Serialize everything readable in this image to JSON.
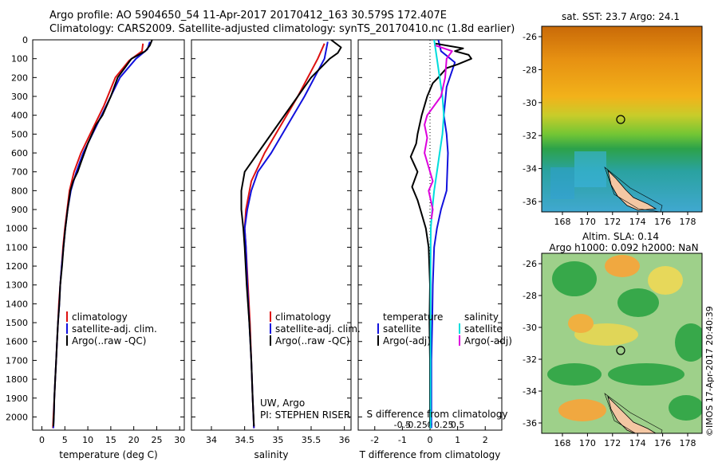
{
  "title": {
    "line1": "Argo profile: AO 5904650_54 11-Apr-2017 20170412_163 30.579S 172.407E",
    "line2": "Climatology: CARS2009. Satellite-adjusted climatology: synTS_20170410.nc (1.8d earlier)"
  },
  "colors": {
    "climatology": "#dd1111",
    "satellite": "#1111dd",
    "argo": "#000000",
    "sat_salinity": "#00dddd",
    "argo_salinity_diff": "#dd00dd"
  },
  "chart_data": [
    {
      "type": "line",
      "name": "temperature",
      "xlabel": "temperature (deg C)",
      "ylabel": "",
      "xlim": [
        -2,
        31
      ],
      "ylim": [
        2070,
        0
      ],
      "xticks": [
        0,
        5,
        10,
        15,
        20,
        25,
        30
      ],
      "yticks": [
        0,
        100,
        200,
        300,
        400,
        500,
        600,
        700,
        800,
        900,
        1000,
        1100,
        1200,
        1300,
        1400,
        1500,
        1600,
        1700,
        1800,
        1900,
        2000
      ],
      "legend": {
        "position": "center-right",
        "entries": [
          "climatology",
          "satellite-adj. clim.",
          "Argo(..raw -QC)"
        ]
      },
      "series": [
        {
          "name": "climatology",
          "color": "#dd1111",
          "points": [
            [
              22,
              20
            ],
            [
              21.8,
              60
            ],
            [
              19,
              110
            ],
            [
              16,
              200
            ],
            [
              13.5,
              350
            ],
            [
              11.5,
              450
            ],
            [
              8.5,
              600
            ],
            [
              7,
              700
            ],
            [
              6,
              800
            ],
            [
              5.5,
              900
            ],
            [
              5,
              1000
            ],
            [
              4.6,
              1100
            ],
            [
              4.3,
              1200
            ],
            [
              4,
              1300
            ],
            [
              3.7,
              1400
            ],
            [
              3.5,
              1500
            ],
            [
              3.3,
              1600
            ],
            [
              3.1,
              1700
            ],
            [
              2.9,
              1800
            ],
            [
              2.7,
              1900
            ],
            [
              2.5,
              2000
            ],
            [
              2.4,
              2060
            ]
          ]
        },
        {
          "name": "satellite-adj. clim.",
          "color": "#1111dd",
          "points": [
            [
              23.5,
              10
            ],
            [
              23,
              50
            ],
            [
              20.5,
              100
            ],
            [
              17,
              200
            ],
            [
              14,
              350
            ],
            [
              12,
              450
            ],
            [
              9,
              600
            ],
            [
              7.5,
              700
            ],
            [
              6.3,
              800
            ],
            [
              5.6,
              900
            ],
            [
              5.1,
              1000
            ],
            [
              4.7,
              1100
            ],
            [
              4.3,
              1200
            ],
            [
              4,
              1300
            ],
            [
              3.8,
              1400
            ],
            [
              3.5,
              1500
            ],
            [
              3.3,
              1600
            ],
            [
              3.1,
              1700
            ],
            [
              2.9,
              1800
            ],
            [
              2.7,
              1900
            ],
            [
              2.6,
              2000
            ],
            [
              2.5,
              2060
            ]
          ]
        },
        {
          "name": "Argo(..raw -QC)",
          "color": "#000000",
          "points": [
            [
              24,
              0
            ],
            [
              23.5,
              30
            ],
            [
              22.5,
              60
            ],
            [
              19.5,
              100
            ],
            [
              18,
              150
            ],
            [
              16.5,
              200
            ],
            [
              15,
              300
            ],
            [
              13.2,
              400
            ],
            [
              11.8,
              450
            ],
            [
              10,
              550
            ],
            [
              8.5,
              650
            ],
            [
              7.8,
              700
            ],
            [
              6.8,
              750
            ],
            [
              6.2,
              800
            ],
            [
              5.6,
              900
            ],
            [
              5.1,
              1000
            ],
            [
              4.7,
              1100
            ],
            [
              4.4,
              1200
            ],
            [
              4,
              1300
            ],
            [
              3.8,
              1400
            ],
            [
              3.5,
              1500
            ],
            [
              3.3,
              1600
            ],
            [
              3.1,
              1700
            ],
            [
              2.9,
              1800
            ],
            [
              2.7,
              1900
            ],
            [
              2.6,
              2000
            ],
            [
              2.5,
              2050
            ]
          ]
        }
      ]
    },
    {
      "type": "line",
      "name": "salinity",
      "xlabel": "salinity",
      "xlim": [
        33.7,
        36.1
      ],
      "ylim": [
        2070,
        0
      ],
      "xticks": [
        34,
        34.5,
        35,
        35.5,
        36
      ],
      "legend": {
        "position": "center-right",
        "entries": [
          "climatology",
          "satellite-adj. clim.",
          "Argo(..raw -QC)"
        ]
      },
      "annotation": [
        "UW, Argo",
        "PI: STEPHEN RISER"
      ],
      "series": [
        {
          "name": "climatology",
          "color": "#dd1111",
          "points": [
            [
              35.7,
              20
            ],
            [
              35.6,
              100
            ],
            [
              35.3,
              300
            ],
            [
              35.05,
              450
            ],
            [
              34.8,
              600
            ],
            [
              34.6,
              750
            ],
            [
              34.52,
              900
            ],
            [
              34.5,
              1000
            ],
            [
              34.52,
              1100
            ],
            [
              34.55,
              1300
            ],
            [
              34.58,
              1500
            ],
            [
              34.6,
              1700
            ],
            [
              34.62,
              1900
            ],
            [
              34.64,
              2060
            ]
          ]
        },
        {
          "name": "satellite-adj. clim.",
          "color": "#1111dd",
          "points": [
            [
              35.75,
              10
            ],
            [
              35.7,
              100
            ],
            [
              35.4,
              300
            ],
            [
              35.15,
              450
            ],
            [
              34.9,
              600
            ],
            [
              34.7,
              700
            ],
            [
              34.6,
              800
            ],
            [
              34.54,
              900
            ],
            [
              34.5,
              1000
            ],
            [
              34.52,
              1100
            ],
            [
              34.54,
              1300
            ],
            [
              34.57,
              1500
            ],
            [
              34.6,
              1700
            ],
            [
              34.62,
              1900
            ],
            [
              34.64,
              2060
            ]
          ]
        },
        {
          "name": "Argo(..raw -QC)",
          "color": "#000000",
          "points": [
            [
              35.8,
              0
            ],
            [
              35.95,
              40
            ],
            [
              35.9,
              70
            ],
            [
              35.78,
              100
            ],
            [
              35.5,
              200
            ],
            [
              35.3,
              300
            ],
            [
              35,
              450
            ],
            [
              34.7,
              600
            ],
            [
              34.5,
              700
            ],
            [
              34.45,
              800
            ],
            [
              34.45,
              900
            ],
            [
              34.48,
              1000
            ],
            [
              34.5,
              1100
            ],
            [
              34.53,
              1300
            ],
            [
              34.57,
              1500
            ],
            [
              34.6,
              1700
            ],
            [
              34.62,
              1900
            ],
            [
              34.64,
              2050
            ]
          ]
        }
      ]
    },
    {
      "type": "line",
      "name": "differences",
      "xlabel": "T difference from climatology",
      "xlabel_top": "S difference from climatology",
      "xlim": [
        -2.6,
        2.6
      ],
      "ylim": [
        2070,
        0
      ],
      "xticks": [
        -2,
        -1,
        0,
        1,
        2
      ],
      "sticks": [
        "-0.5",
        "-0.25",
        "0",
        "0.25",
        "0.5"
      ],
      "legend": {
        "position": "center",
        "temperature_title": "temperature",
        "salinity_title": "salinity",
        "entries": [
          "satellite",
          "Argo(-adj)",
          "satellite",
          "Argo(-adj)"
        ]
      },
      "series": [
        {
          "name": "satellite",
          "color": "#1111dd",
          "points": [
            [
              0.3,
              0
            ],
            [
              0.4,
              60
            ],
            [
              0.9,
              120
            ],
            [
              0.6,
              250
            ],
            [
              0.5,
              400
            ],
            [
              0.6,
              500
            ],
            [
              0.65,
              600
            ],
            [
              0.6,
              800
            ],
            [
              0.4,
              900
            ],
            [
              0.25,
              1000
            ],
            [
              0.15,
              1100
            ],
            [
              0.1,
              1300
            ],
            [
              0.08,
              1500
            ],
            [
              0.05,
              1700
            ],
            [
              0.05,
              1900
            ],
            [
              0.05,
              2060
            ]
          ]
        },
        {
          "name": "Argo(-adj)",
          "color": "#000000",
          "points": [
            [
              0.2,
              20
            ],
            [
              0.6,
              30
            ],
            [
              1.2,
              45
            ],
            [
              0.9,
              60
            ],
            [
              1.4,
              80
            ],
            [
              1.5,
              100
            ],
            [
              1.0,
              130
            ],
            [
              0.6,
              150
            ],
            [
              0.3,
              200
            ],
            [
              0.1,
              230
            ],
            [
              -0.1,
              300
            ],
            [
              -0.3,
              400
            ],
            [
              -0.45,
              500
            ],
            [
              -0.5,
              550
            ],
            [
              -0.7,
              620
            ],
            [
              -0.45,
              700
            ],
            [
              -0.65,
              780
            ],
            [
              -0.45,
              850
            ],
            [
              -0.35,
              900
            ],
            [
              -0.15,
              1000
            ],
            [
              -0.05,
              1100
            ],
            [
              0,
              1300
            ],
            [
              -0.02,
              1500
            ],
            [
              0,
              1700
            ],
            [
              0,
              1900
            ],
            [
              0,
              2050
            ]
          ]
        },
        {
          "name": "satellite (S)",
          "color": "#00dddd",
          "points": [
            [
              0.15,
              0
            ],
            [
              0.25,
              100
            ],
            [
              0.35,
              200
            ],
            [
              0.45,
              300
            ],
            [
              0.5,
              400
            ],
            [
              0.45,
              500
            ],
            [
              0.35,
              600
            ],
            [
              0.25,
              700
            ],
            [
              0.15,
              800
            ],
            [
              0.08,
              900
            ],
            [
              0.03,
              1000
            ],
            [
              0.02,
              1200
            ],
            [
              0.02,
              1500
            ],
            [
              0.02,
              1800
            ],
            [
              0.02,
              2060
            ]
          ]
        },
        {
          "name": "Argo(-adj) (S)",
          "color": "#dd00dd",
          "points": [
            [
              0.2,
              30
            ],
            [
              0.8,
              60
            ],
            [
              0.6,
              100
            ],
            [
              0.55,
              200
            ],
            [
              0.4,
              300
            ],
            [
              -0.1,
              400
            ],
            [
              -0.2,
              450
            ],
            [
              -0.1,
              520
            ],
            [
              -0.2,
              600
            ],
            [
              0.1,
              750
            ],
            [
              -0.05,
              800
            ],
            [
              0.1,
              900
            ],
            [
              0.05,
              950
            ]
          ]
        }
      ]
    }
  ],
  "maps": {
    "sst": {
      "title": "sat. SST: 23.7  Argo: 24.1",
      "yticks": [
        "-26",
        "-28",
        "-30",
        "-32",
        "-34",
        "-36"
      ],
      "xticks": [
        "168",
        "170",
        "172",
        "174",
        "176",
        "178"
      ]
    },
    "sla": {
      "title_line1": "Altim. SLA: 0.14",
      "title_line2": "Argo h1000: 0.092 h2000: NaN",
      "yticks": [
        "-26",
        "-28",
        "-30",
        "-32",
        "-34",
        "-36"
      ],
      "xticks": [
        "168",
        "170",
        "172",
        "174",
        "176",
        "178"
      ]
    }
  },
  "credit": "©IMOS 17-Apr-2017 20:40:39"
}
